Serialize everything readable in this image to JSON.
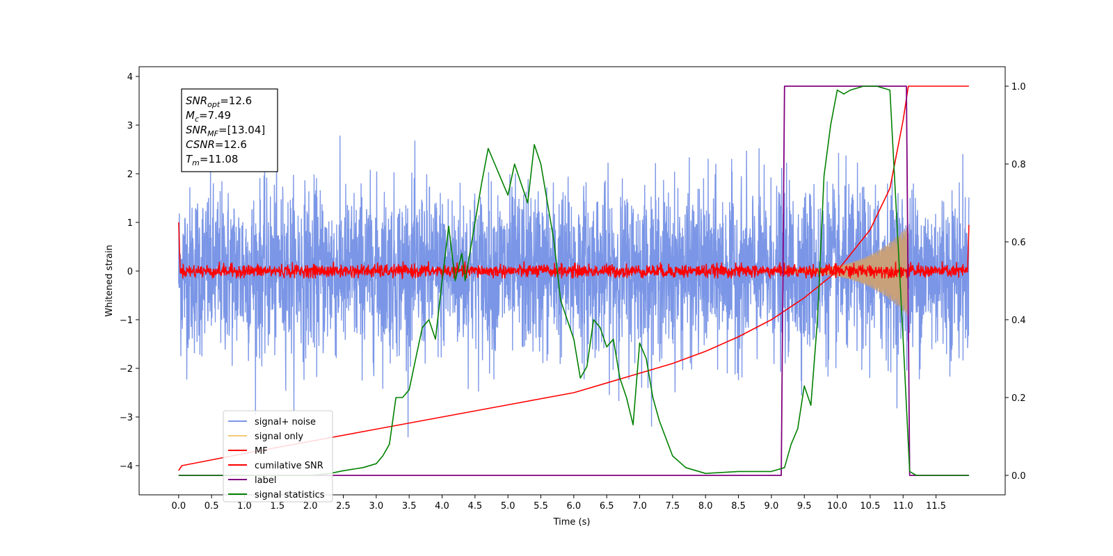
{
  "chart_data": {
    "type": "line",
    "xlabel": "Time (s)",
    "ylabel": "Whitened strain",
    "xlim": [
      -0.6,
      12.55
    ],
    "ylim": [
      -4.6,
      4.2
    ],
    "ylim_right": [
      -0.05,
      1.05
    ],
    "x_ticks": [
      "0.0",
      "0.5",
      "1.0",
      "1.5",
      "2.0",
      "2.5",
      "3.0",
      "3.5",
      "4.0",
      "4.5",
      "5.0",
      "5.5",
      "6.0",
      "6.5",
      "7.0",
      "7.5",
      "8.0",
      "8.5",
      "9.0",
      "9.5",
      "10.0",
      "10.5",
      "11.0",
      "11.5"
    ],
    "y_ticks_left": [
      "4",
      "3",
      "2",
      "1",
      "0",
      "−1",
      "−2",
      "−3",
      "−4"
    ],
    "y_ticks_right": [
      "1.0",
      "0.8",
      "0.6",
      "0.4",
      "0.2",
      "0.0"
    ],
    "grid": false,
    "legend_position": "lower-left",
    "annotation": {
      "lines": [
        {
          "base": "SNR",
          "sub": "opt",
          "rest": "=12.6"
        },
        {
          "base": "M",
          "sub": "c",
          "rest": "=7.49"
        },
        {
          "base": "SNR",
          "sub": "MF",
          "rest": "=[13.04]"
        },
        {
          "base": "CSNR",
          "sub": "",
          "rest": "=12.6"
        },
        {
          "base": "T",
          "sub": "m",
          "rest": "=11.08"
        }
      ]
    },
    "series": [
      {
        "name": "signal+ noise",
        "color": "#7b96e6",
        "axis": "left",
        "kind": "noise",
        "amplitude_range": [
          -3.7,
          3.8
        ]
      },
      {
        "name": "signal only",
        "color": "#f5c87a",
        "axis": "left",
        "kind": "chirp",
        "start": 9.1,
        "end": 11.08,
        "max_amplitude": 0.9
      },
      {
        "name": "MF",
        "color": "#ff0000",
        "axis": "left",
        "kind": "noise",
        "amplitude_range": [
          -0.15,
          0.2
        ],
        "edge_values": [
          1.0,
          0.95
        ]
      },
      {
        "name": "cumilative SNR",
        "color": "#ff0000",
        "axis": "left",
        "x": [
          0.0,
          0.05,
          1.0,
          2.0,
          3.0,
          4.0,
          5.0,
          6.0,
          7.0,
          7.5,
          8.0,
          8.5,
          9.0,
          9.5,
          10.0,
          10.5,
          10.8,
          11.0,
          11.08,
          12.0
        ],
        "values": [
          -4.1,
          -4.0,
          -3.75,
          -3.5,
          -3.25,
          -3.0,
          -2.75,
          -2.5,
          -2.1,
          -1.9,
          -1.65,
          -1.35,
          -1.0,
          -0.55,
          0.0,
          0.85,
          1.7,
          3.1,
          3.8,
          3.8
        ]
      },
      {
        "name": "label",
        "color": "#800080",
        "axis": "right",
        "x": [
          0.0,
          9.15,
          9.2,
          11.05,
          11.1,
          12.0
        ],
        "values": [
          0,
          0,
          1,
          1,
          0,
          0
        ]
      },
      {
        "name": "signal statistics",
        "color": "#008000",
        "axis": "right",
        "x": [
          0.0,
          0.5,
          1.0,
          1.5,
          2.0,
          2.3,
          2.5,
          2.8,
          3.0,
          3.1,
          3.2,
          3.3,
          3.4,
          3.5,
          3.6,
          3.7,
          3.8,
          3.9,
          4.0,
          4.1,
          4.2,
          4.3,
          4.35,
          4.4,
          4.5,
          4.6,
          4.7,
          4.8,
          4.9,
          5.0,
          5.1,
          5.2,
          5.3,
          5.4,
          5.5,
          5.6,
          5.7,
          5.8,
          5.9,
          6.0,
          6.1,
          6.2,
          6.3,
          6.4,
          6.5,
          6.6,
          6.7,
          6.8,
          6.9,
          7.0,
          7.1,
          7.2,
          7.3,
          7.5,
          7.7,
          8.0,
          8.5,
          9.0,
          9.2,
          9.3,
          9.4,
          9.5,
          9.6,
          9.7,
          9.8,
          9.9,
          10.0,
          10.1,
          10.2,
          10.4,
          10.6,
          10.8,
          11.0,
          11.1,
          11.2,
          12.0
        ],
        "values": [
          0.0,
          0.0,
          0.0,
          0.0,
          0.0,
          0.005,
          0.012,
          0.02,
          0.03,
          0.05,
          0.08,
          0.2,
          0.2,
          0.22,
          0.3,
          0.38,
          0.4,
          0.35,
          0.5,
          0.64,
          0.5,
          0.57,
          0.5,
          0.55,
          0.65,
          0.75,
          0.84,
          0.8,
          0.76,
          0.72,
          0.8,
          0.75,
          0.7,
          0.85,
          0.8,
          0.7,
          0.6,
          0.45,
          0.4,
          0.35,
          0.25,
          0.28,
          0.4,
          0.38,
          0.33,
          0.35,
          0.25,
          0.2,
          0.13,
          0.34,
          0.3,
          0.2,
          0.14,
          0.05,
          0.02,
          0.005,
          0.01,
          0.01,
          0.02,
          0.08,
          0.12,
          0.23,
          0.18,
          0.4,
          0.77,
          0.9,
          0.99,
          0.98,
          0.99,
          1.0,
          1.0,
          0.99,
          0.35,
          0.01,
          0.0,
          0.0
        ]
      }
    ]
  }
}
